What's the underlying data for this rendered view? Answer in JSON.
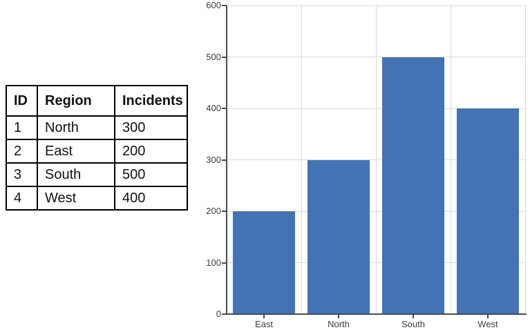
{
  "table": {
    "headers": [
      "ID",
      "Region",
      "Incidents"
    ],
    "rows": [
      [
        "1",
        "North",
        "300"
      ],
      [
        "2",
        "East",
        "200"
      ],
      [
        "3",
        "South",
        "500"
      ],
      [
        "4",
        "West",
        "400"
      ]
    ]
  },
  "chart_data": {
    "type": "bar",
    "categories": [
      "East",
      "North",
      "South",
      "West"
    ],
    "values": [
      200,
      300,
      500,
      400
    ],
    "title": "",
    "xlabel": "",
    "ylabel": "",
    "ylim": [
      0,
      600
    ],
    "ytick_step": 100,
    "grid": true,
    "legend": false,
    "bar_color": "#4273b5",
    "gridline_color": "#d9d9d9",
    "axis_color": "#4a4a4a",
    "label_color": "#3c3c3c"
  }
}
